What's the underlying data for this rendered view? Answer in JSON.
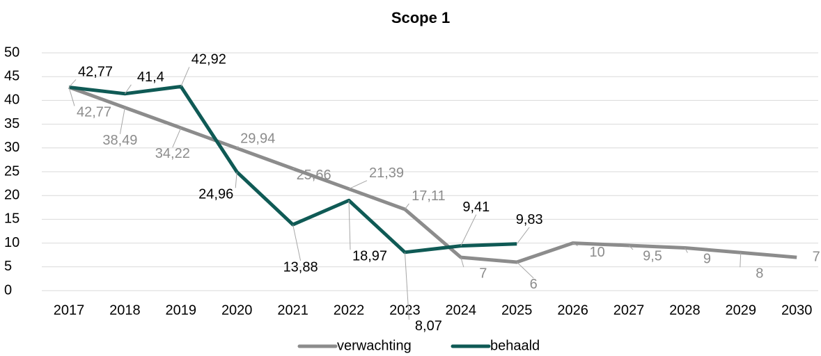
{
  "chart_data": {
    "type": "line",
    "title": "Scope 1",
    "categories": [
      "2017",
      "2018",
      "2019",
      "2020",
      "2021",
      "2022",
      "2023",
      "2024",
      "2025",
      "2026",
      "2027",
      "2028",
      "2029",
      "2030"
    ],
    "series": [
      {
        "name": "verwachting",
        "color": "#8c8c8c",
        "values": [
          42.77,
          38.49,
          34.22,
          29.94,
          25.66,
          21.39,
          17.11,
          7,
          6,
          10,
          9.5,
          9,
          8,
          7
        ],
        "value_labels": [
          "42,77",
          "38,49",
          "34,22",
          "29,94",
          "25,66",
          "21,39",
          "17,11",
          "7",
          "6",
          "10",
          "9,5",
          "9",
          "8",
          "7"
        ]
      },
      {
        "name": "behaald",
        "color": "#0f5a55",
        "values": [
          42.77,
          41.4,
          42.92,
          24.96,
          13.88,
          18.97,
          8.07,
          9.41,
          9.83,
          null,
          null,
          null,
          null,
          null
        ],
        "value_labels": [
          "42,77",
          "41,4",
          "42,92",
          "24,96",
          "13,88",
          "18,97",
          "8,07",
          "9,41",
          "9,83",
          null,
          null,
          null,
          null,
          null
        ]
      }
    ],
    "ylim": [
      0,
      50
    ],
    "yticks": [
      0,
      5,
      10,
      15,
      20,
      25,
      30,
      35,
      40,
      45,
      50
    ],
    "grid": true,
    "legend": "bottom"
  }
}
